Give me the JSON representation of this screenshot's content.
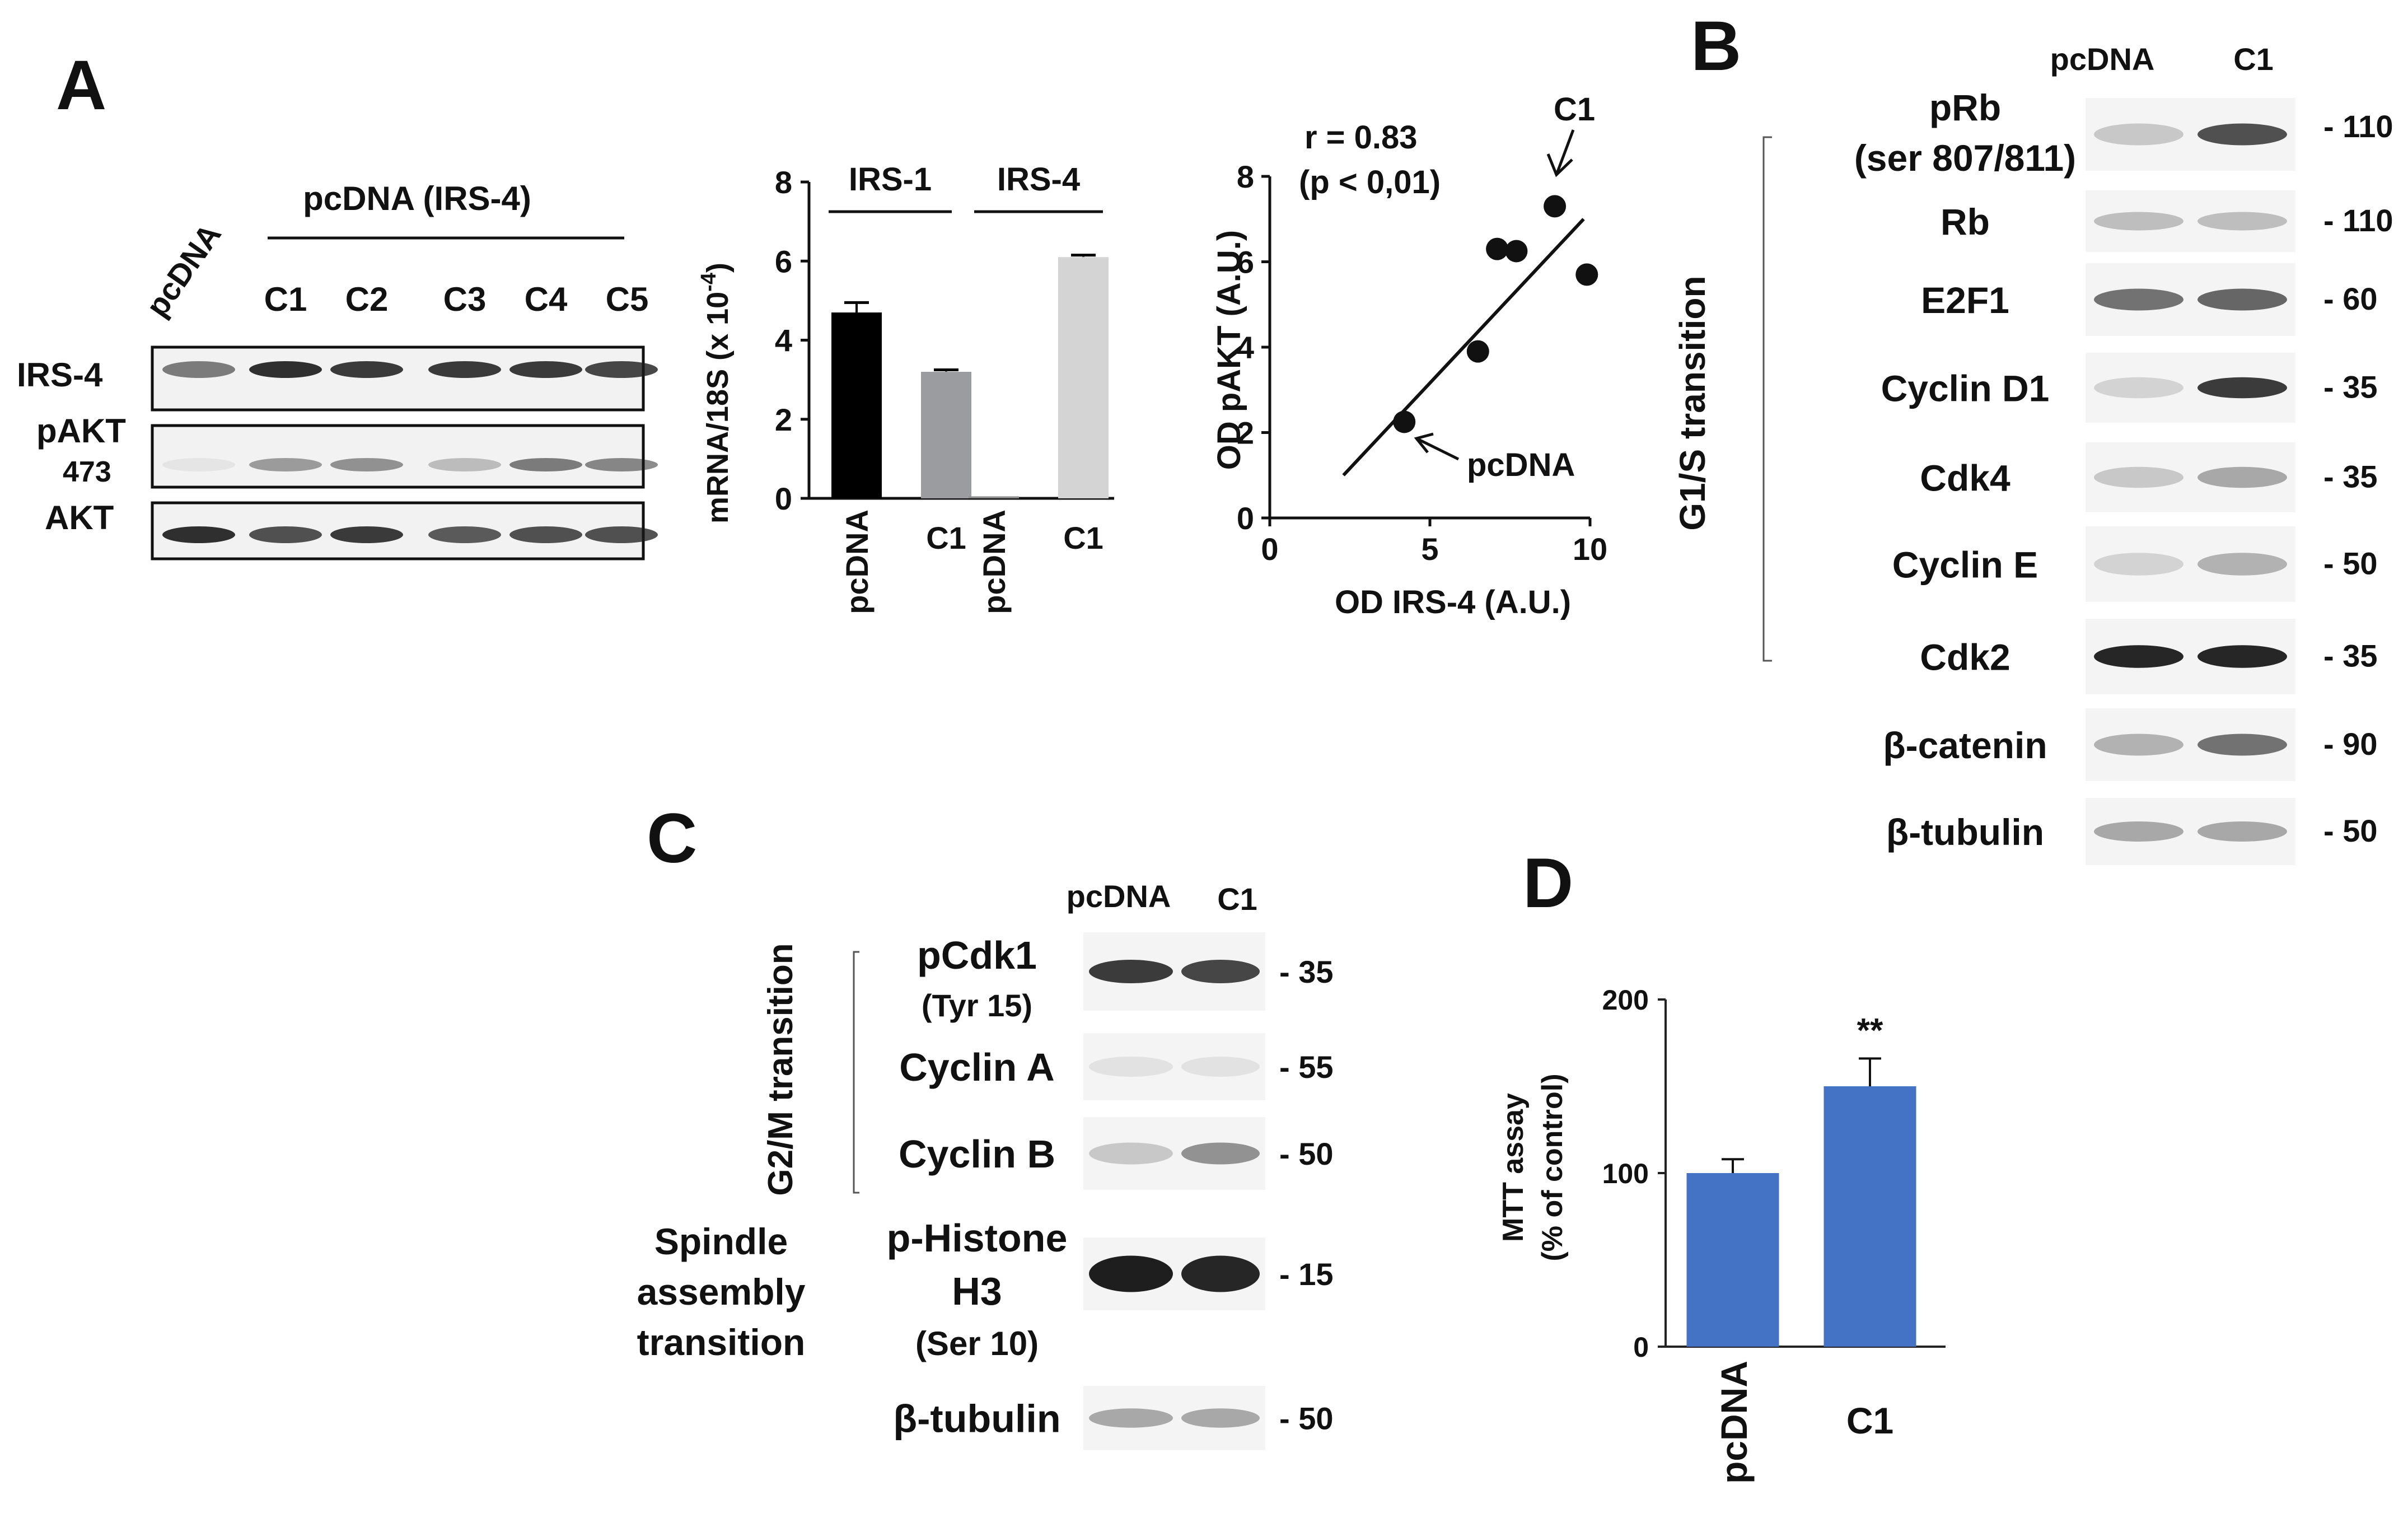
{
  "panel_letters": {
    "a": "A",
    "b": "B",
    "c": "C",
    "d": "D"
  },
  "panel_a": {
    "blot": {
      "pcdna_label": "pcDNA",
      "group_label": "pcDNA (IRS-4)",
      "clones": [
        "C1",
        "C2",
        "C3",
        "C4",
        "C5"
      ],
      "row_labels": {
        "irs4": "IRS-4",
        "pakt": "pAKT",
        "pakt_site": "473",
        "akt": "AKT"
      },
      "band_intensity": {
        "irs4": [
          0.55,
          0.9,
          0.85,
          0.85,
          0.85,
          0.8
        ],
        "pakt": [
          0.05,
          0.4,
          0.45,
          0.25,
          0.55,
          0.5
        ],
        "akt": [
          0.9,
          0.75,
          0.85,
          0.7,
          0.75,
          0.75
        ]
      }
    }
  },
  "panel_b": {
    "side_label": "G1/S transition",
    "col_labels": [
      "pcDNA",
      "C1"
    ],
    "rows": [
      {
        "name": "pRb",
        "name2": "(ser 807/811)",
        "mw": "- 110",
        "intensity": [
          0.2,
          0.75
        ]
      },
      {
        "name": "Rb",
        "mw": "- 110",
        "intensity": [
          0.25,
          0.25
        ]
      },
      {
        "name": "E2F1",
        "mw": "- 60",
        "intensity": [
          0.6,
          0.65
        ]
      },
      {
        "name": "Cyclin D1",
        "mw": "- 35",
        "intensity": [
          0.15,
          0.85
        ]
      },
      {
        "name": "Cdk4",
        "mw": "- 35",
        "intensity": [
          0.2,
          0.35
        ]
      },
      {
        "name": "Cyclin E",
        "mw": "- 50",
        "intensity": [
          0.15,
          0.3
        ]
      },
      {
        "name": "Cdk2",
        "mw": "- 35",
        "intensity": [
          0.95,
          0.95
        ]
      },
      {
        "name": "β-catenin",
        "mw": "- 90",
        "intensity": [
          0.3,
          0.6
        ]
      },
      {
        "name": "β-tubulin",
        "mw": "- 50",
        "intensity": [
          0.35,
          0.35
        ]
      }
    ]
  },
  "panel_c": {
    "side_label": "G2/M transition",
    "spindle_label": [
      "Spindle",
      "assembly",
      "transition"
    ],
    "col_labels": [
      "pcDNA",
      "C1"
    ],
    "rows": [
      {
        "name": "pCdk1",
        "name2": "(Tyr 15)",
        "mw": "- 35",
        "intensity": [
          0.85,
          0.8
        ]
      },
      {
        "name": "Cyclin A",
        "mw": "- 55",
        "intensity": [
          0.08,
          0.08
        ]
      },
      {
        "name": "Cyclin B",
        "mw": "- 50",
        "intensity": [
          0.2,
          0.45
        ]
      },
      {
        "name": "p-Histone",
        "name2": "H3",
        "name3": "(Ser 10)",
        "mw": "- 15",
        "intensity": [
          0.98,
          0.95
        ]
      },
      {
        "name": "β-tubulin",
        "mw": "- 50",
        "intensity": [
          0.35,
          0.35
        ]
      }
    ]
  },
  "chart_data": [
    {
      "type": "bar",
      "panel": "A-middle",
      "ylabel": "mRNA/18S (x 10",
      "ylabel_exp": "-4",
      "ylabel_close": ")",
      "ylim": [
        0,
        8
      ],
      "yticks": [
        0,
        2,
        4,
        6,
        8
      ],
      "group_labels": [
        "IRS-1",
        "IRS-4"
      ],
      "categories": [
        "pcDNA",
        "C1",
        "pcDNA",
        "C1"
      ],
      "values": [
        4.7,
        3.2,
        0.05,
        6.1
      ],
      "errors": [
        0.25,
        0.05,
        0.02,
        0.05
      ],
      "colors": [
        "#000000",
        "#9a9ca0",
        "#8c8c8c",
        "#d4d4d4"
      ]
    },
    {
      "type": "scatter",
      "panel": "A-right",
      "xlabel": "OD IRS-4 (A.U.)",
      "ylabel": "OD pAKT (A.U.)",
      "xlim": [
        0,
        10
      ],
      "ylim": [
        0,
        8
      ],
      "xticks": [
        0,
        5,
        10
      ],
      "yticks": [
        0,
        2,
        4,
        6,
        8
      ],
      "points": [
        [
          4.2,
          2.25
        ],
        [
          6.5,
          3.9
        ],
        [
          7.1,
          6.3
        ],
        [
          7.7,
          6.25
        ],
        [
          8.9,
          7.3
        ],
        [
          9.9,
          5.7
        ]
      ],
      "fit_line": [
        [
          2.3,
          1.0
        ],
        [
          9.8,
          7.0
        ]
      ],
      "annotations": {
        "r": "r = 0.83",
        "p": "(p < 0,01)",
        "c1": "C1",
        "pcdna": "pcDNA"
      }
    },
    {
      "type": "bar",
      "panel": "D",
      "ylabel": "MTT assay",
      "ylabel2": "(% of control)",
      "ylim": [
        0,
        200
      ],
      "yticks": [
        0,
        100,
        200
      ],
      "categories": [
        "pcDNA",
        "C1"
      ],
      "values": [
        100,
        150
      ],
      "errors": [
        8,
        16
      ],
      "significance": "**",
      "color": "#4472c4"
    }
  ]
}
